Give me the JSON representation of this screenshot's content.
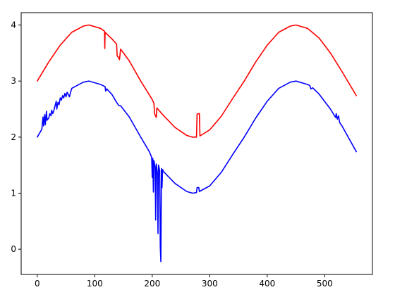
{
  "chart_data": {
    "type": "line",
    "title": "",
    "xlabel": "",
    "ylabel": "",
    "xlim": [
      -28,
      583
    ],
    "ylim": [
      -0.45,
      4.22
    ],
    "xticks": [
      0,
      100,
      200,
      300,
      400,
      500
    ],
    "yticks": [
      0,
      1,
      2,
      3,
      4
    ],
    "x_tick_labels": [
      "0",
      "100",
      "200",
      "300",
      "400",
      "500"
    ],
    "y_tick_labels": [
      "0",
      "1",
      "2",
      "3",
      "4"
    ],
    "grid": false,
    "legend": false,
    "series": [
      {
        "color": "#ff0000",
        "points": [
          [
            0,
            3.0
          ],
          [
            20,
            3.34
          ],
          [
            40,
            3.64
          ],
          [
            60,
            3.87
          ],
          [
            80,
            3.98
          ],
          [
            90,
            4.0
          ],
          [
            110,
            3.94
          ],
          [
            117,
            3.89
          ],
          [
            117.5,
            3.58
          ],
          [
            118,
            3.87
          ],
          [
            130,
            3.75
          ],
          [
            138,
            3.66
          ],
          [
            139,
            3.45
          ],
          [
            142,
            3.41
          ],
          [
            143,
            3.38
          ],
          [
            145,
            3.57
          ],
          [
            160,
            3.36
          ],
          [
            180,
            3.0
          ],
          [
            200,
            2.67
          ],
          [
            203,
            2.6
          ],
          [
            204,
            2.42
          ],
          [
            207,
            2.35
          ],
          [
            208,
            2.52
          ],
          [
            220,
            2.38
          ],
          [
            240,
            2.17
          ],
          [
            260,
            2.03
          ],
          [
            270,
            2.0
          ],
          [
            277,
            2.0
          ],
          [
            278,
            2.41
          ],
          [
            282,
            2.42
          ],
          [
            283,
            2.02
          ],
          [
            300,
            2.13
          ],
          [
            320,
            2.37
          ],
          [
            340,
            2.69
          ],
          [
            360,
            3.0
          ],
          [
            380,
            3.34
          ],
          [
            400,
            3.64
          ],
          [
            420,
            3.87
          ],
          [
            440,
            3.98
          ],
          [
            450,
            4.0
          ],
          [
            470,
            3.94
          ],
          [
            490,
            3.77
          ],
          [
            510,
            3.5
          ],
          [
            530,
            3.17
          ],
          [
            555,
            2.74
          ]
        ]
      },
      {
        "color": "#0000ff",
        "points": [
          [
            0,
            2.0
          ],
          [
            8,
            2.14
          ],
          [
            10,
            2.36
          ],
          [
            11,
            2.2
          ],
          [
            13,
            2.4
          ],
          [
            14,
            2.22
          ],
          [
            16,
            2.46
          ],
          [
            17,
            2.3
          ],
          [
            20,
            2.34
          ],
          [
            22,
            2.42
          ],
          [
            24,
            2.38
          ],
          [
            25,
            2.48
          ],
          [
            27,
            2.42
          ],
          [
            29,
            2.48
          ],
          [
            31,
            2.56
          ],
          [
            33,
            2.64
          ],
          [
            34,
            2.5
          ],
          [
            36,
            2.62
          ],
          [
            38,
            2.58
          ],
          [
            40,
            2.7
          ],
          [
            42,
            2.66
          ],
          [
            44,
            2.74
          ],
          [
            46,
            2.7
          ],
          [
            48,
            2.78
          ],
          [
            50,
            2.72
          ],
          [
            52,
            2.8
          ],
          [
            54,
            2.76
          ],
          [
            56,
            2.72
          ],
          [
            58,
            2.8
          ],
          [
            60,
            2.87
          ],
          [
            80,
            2.98
          ],
          [
            90,
            3.0
          ],
          [
            110,
            2.94
          ],
          [
            118,
            2.9
          ],
          [
            119,
            2.82
          ],
          [
            121,
            2.86
          ],
          [
            130,
            2.76
          ],
          [
            138,
            2.62
          ],
          [
            142,
            2.56
          ],
          [
            145,
            2.56
          ],
          [
            160,
            2.36
          ],
          [
            180,
            2.0
          ],
          [
            195,
            1.74
          ],
          [
            199,
            1.64
          ],
          [
            200,
            1.28
          ],
          [
            201,
            1.62
          ],
          [
            202,
            1.02
          ],
          [
            203,
            1.58
          ],
          [
            205,
            1.46
          ],
          [
            206,
            0.52
          ],
          [
            207,
            1.52
          ],
          [
            209,
            1.36
          ],
          [
            210,
            0.28
          ],
          [
            211,
            1.5
          ],
          [
            213,
            1.4
          ],
          [
            214,
            0.05
          ],
          [
            215,
            -0.22
          ],
          [
            216,
            1.44
          ],
          [
            217,
            1.1
          ],
          [
            218,
            1.42
          ],
          [
            220,
            1.38
          ],
          [
            240,
            1.17
          ],
          [
            260,
            1.03
          ],
          [
            270,
            1.0
          ],
          [
            277,
            1.01
          ],
          [
            278,
            1.1
          ],
          [
            281,
            1.1
          ],
          [
            282,
            1.03
          ],
          [
            300,
            1.13
          ],
          [
            320,
            1.37
          ],
          [
            340,
            1.69
          ],
          [
            360,
            2.0
          ],
          [
            380,
            2.34
          ],
          [
            400,
            2.64
          ],
          [
            420,
            2.87
          ],
          [
            440,
            2.98
          ],
          [
            450,
            3.0
          ],
          [
            470,
            2.94
          ],
          [
            474,
            2.92
          ],
          [
            476,
            2.86
          ],
          [
            479,
            2.88
          ],
          [
            490,
            2.77
          ],
          [
            510,
            2.5
          ],
          [
            519,
            2.35
          ],
          [
            520,
            2.42
          ],
          [
            522,
            2.32
          ],
          [
            524,
            2.38
          ],
          [
            526,
            2.26
          ],
          [
            530,
            2.2
          ],
          [
            555,
            1.74
          ]
        ]
      }
    ]
  }
}
